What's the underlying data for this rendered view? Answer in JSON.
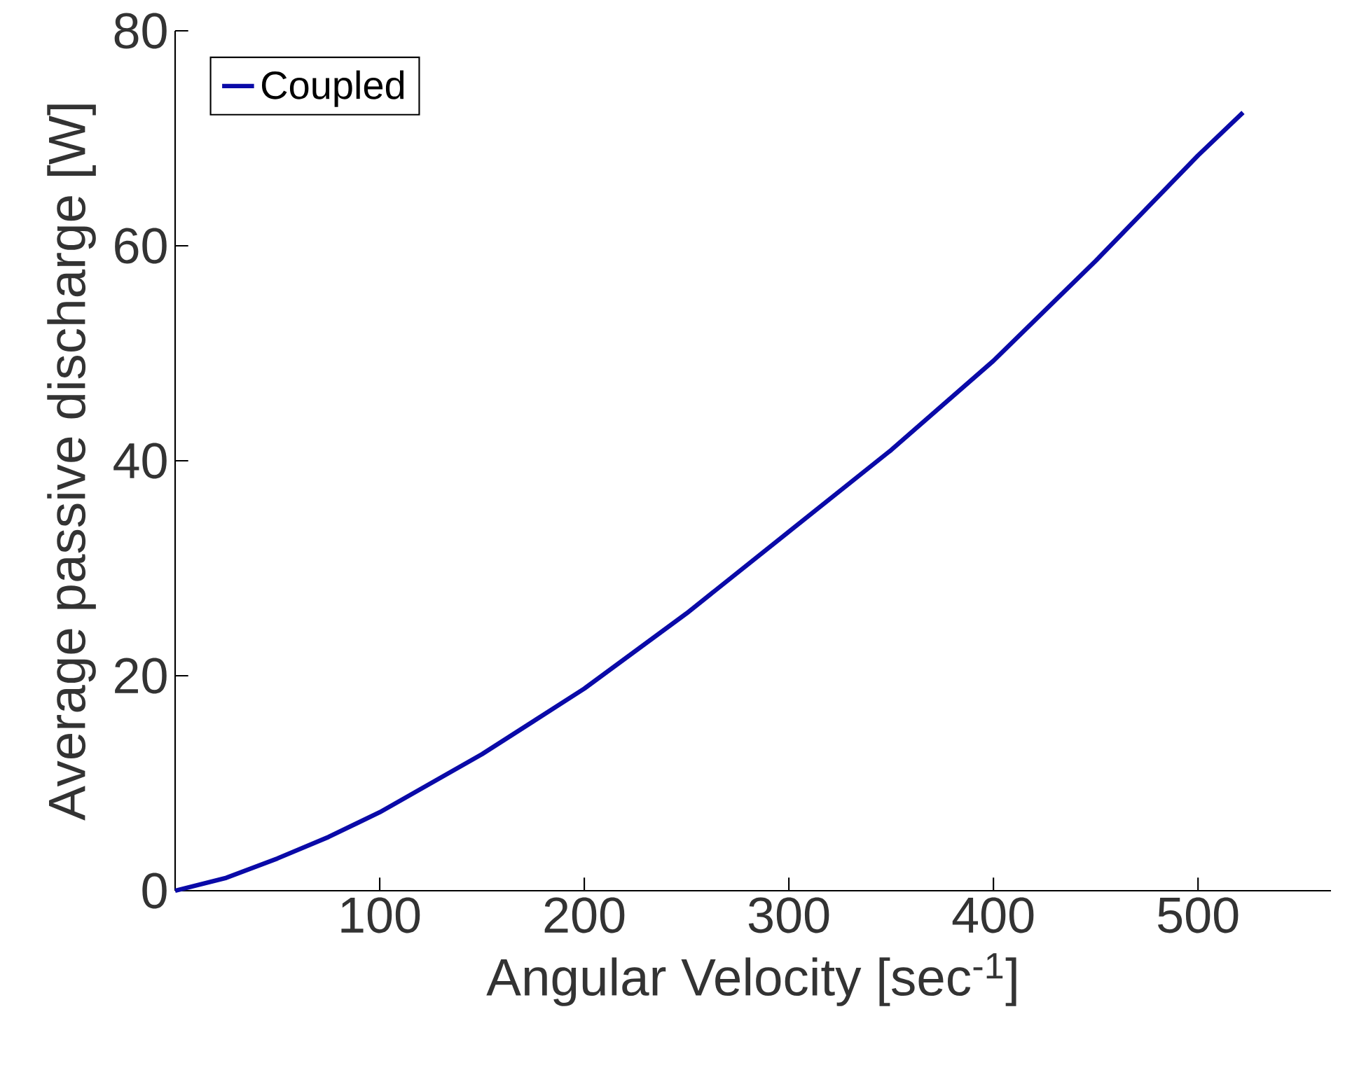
{
  "chart_data": {
    "type": "line",
    "xlabel": "Angular Velocity [sec$^{-1}$]",
    "ylabel": "Average passive discharge [W]",
    "x": [
      0,
      25,
      50,
      75,
      100,
      150,
      200,
      250,
      300,
      350,
      400,
      450,
      500,
      522
    ],
    "series": [
      {
        "name": "Coupled",
        "color": "#0a0aa8",
        "values": [
          0,
          1.2,
          3.0,
          5.0,
          7.3,
          12.7,
          18.8,
          25.8,
          33.4,
          41.0,
          49.3,
          58.6,
          68.4,
          72.4
        ]
      }
    ],
    "xlim": [
      0,
      565
    ],
    "ylim": [
      0,
      80
    ],
    "xticks": [
      100,
      200,
      300,
      400,
      500
    ],
    "yticks": [
      0,
      20,
      40,
      60,
      80
    ],
    "legend": "top left"
  }
}
